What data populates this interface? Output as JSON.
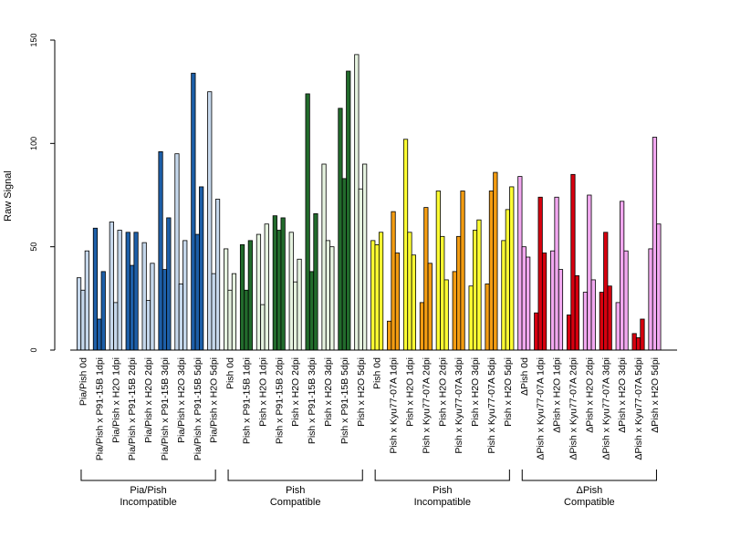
{
  "chart_data": {
    "type": "bar",
    "ylabel": "Raw Signal",
    "xlabel": "",
    "title": "",
    "ylim": [
      0,
      150
    ],
    "yticks": [
      0,
      50,
      100,
      150
    ],
    "grid": false,
    "legend": "none",
    "colors": {
      "pale_blue": "#c6d8ec",
      "dark_blue": "#1d5fa8",
      "pale_green": "#e6f3e0",
      "dark_green": "#226b2c",
      "yellow": "#ffff33",
      "orange": "#f39c12",
      "pink": "#f2a8f0",
      "red": "#d7000f"
    },
    "categories": [
      {
        "label": "Pia/Pish 0d",
        "color": "pale_blue",
        "values": [
          35,
          29,
          48
        ]
      },
      {
        "label": "Pia/Pish x P91-15B 1dpi",
        "color": "dark_blue",
        "values": [
          59,
          15,
          38
        ]
      },
      {
        "label": "Pia/Pish x H2O 1dpi",
        "color": "pale_blue",
        "values": [
          62,
          23,
          58
        ]
      },
      {
        "label": "Pia/Pish x P91-15B 2dpi",
        "color": "dark_blue",
        "values": [
          57,
          41,
          57
        ]
      },
      {
        "label": "Pia/Pish x H2O 2dpi",
        "color": "pale_blue",
        "values": [
          52,
          24,
          42
        ]
      },
      {
        "label": "Pia/Pish x P91-15B 3dpi",
        "color": "dark_blue",
        "values": [
          96,
          39,
          64
        ]
      },
      {
        "label": "Pia/Pish x H2O 3dpi",
        "color": "pale_blue",
        "values": [
          95,
          32,
          53
        ]
      },
      {
        "label": "Pia/Pish x P91-15B 5dpi",
        "color": "dark_blue",
        "values": [
          134,
          56,
          79
        ]
      },
      {
        "label": "Pia/Pish x H2O 5dpi",
        "color": "pale_blue",
        "values": [
          125,
          37,
          73
        ]
      },
      {
        "label": "Pish 0d",
        "color": "pale_green",
        "values": [
          49,
          29,
          37
        ]
      },
      {
        "label": "Pish x P91-15B 1dpi",
        "color": "dark_green",
        "values": [
          51,
          29,
          53
        ]
      },
      {
        "label": "Pish x H2O 1dpi",
        "color": "pale_green",
        "values": [
          56,
          22,
          61
        ]
      },
      {
        "label": "Pish x P91-15B 2dpi",
        "color": "dark_green",
        "values": [
          65,
          58,
          64
        ]
      },
      {
        "label": "Pish x H2O 2dpi",
        "color": "pale_green",
        "values": [
          57,
          33,
          44
        ]
      },
      {
        "label": "Pish x P91-15B 3dpi",
        "color": "dark_green",
        "values": [
          124,
          38,
          66
        ]
      },
      {
        "label": "Pish x H2O 3dpi",
        "color": "pale_green",
        "values": [
          90,
          53,
          50
        ]
      },
      {
        "label": "Pish x P91-15B 5dpi",
        "color": "dark_green",
        "values": [
          117,
          83,
          135
        ]
      },
      {
        "label": "Pish x H2O 5dpi",
        "color": "pale_green",
        "values": [
          143,
          78,
          90
        ]
      },
      {
        "label": "Pish 0d",
        "color": "yellow",
        "values": [
          53,
          51,
          57
        ]
      },
      {
        "label": "Pish x Kyu77-07A 1dpi",
        "color": "orange",
        "values": [
          14,
          67,
          47
        ]
      },
      {
        "label": "Pish x H2O 1dpi",
        "color": "yellow",
        "values": [
          102,
          57,
          46
        ]
      },
      {
        "label": "Pish x Kyu77-07A 2dpi",
        "color": "orange",
        "values": [
          23,
          69,
          42
        ]
      },
      {
        "label": "Pish x H2O 2dpi",
        "color": "yellow",
        "values": [
          77,
          55,
          34
        ]
      },
      {
        "label": "Pish x Kyu77-07A 3dpi",
        "color": "orange",
        "values": [
          38,
          55,
          77
        ]
      },
      {
        "label": "Pish x H2O 3dpi",
        "color": "yellow",
        "values": [
          31,
          58,
          63
        ]
      },
      {
        "label": "Pish x Kyu77-07A 5dpi",
        "color": "orange",
        "values": [
          32,
          77,
          86
        ]
      },
      {
        "label": "Pish x H2O 5dpi",
        "color": "yellow",
        "values": [
          53,
          68,
          79
        ]
      },
      {
        "label": "ΔPish 0d",
        "color": "pink",
        "values": [
          84,
          50,
          45
        ]
      },
      {
        "label": "ΔPish x Kyu77-07A 1dpi",
        "color": "red",
        "values": [
          18,
          74,
          47
        ]
      },
      {
        "label": "ΔPish x H2O 1dpi",
        "color": "pink",
        "values": [
          48,
          74,
          39
        ]
      },
      {
        "label": "ΔPish x Kyu77-07A 2dpi",
        "color": "red",
        "values": [
          17,
          85,
          36
        ]
      },
      {
        "label": "ΔPish x H2O 2dpi",
        "color": "pink",
        "values": [
          28,
          75,
          34
        ]
      },
      {
        "label": "ΔPish x Kyu77-07A 3dpi",
        "color": "red",
        "values": [
          28,
          57,
          31
        ]
      },
      {
        "label": "ΔPish x H2O 3dpi",
        "color": "pink",
        "values": [
          23,
          72,
          48
        ]
      },
      {
        "label": "ΔPish x Kyu77-07A 5dpi",
        "color": "red",
        "values": [
          8,
          6,
          15
        ]
      },
      {
        "label": "ΔPish x H2O 5dpi",
        "color": "pink",
        "values": [
          49,
          103,
          61
        ]
      }
    ],
    "groups": [
      {
        "line1": "Pia/Pish",
        "line2": "Incompatible",
        "first": 0,
        "last": 8
      },
      {
        "line1": "Pish",
        "line2": "Compatible",
        "first": 9,
        "last": 17
      },
      {
        "line1": "Pish",
        "line2": "Incompatible",
        "first": 18,
        "last": 26
      },
      {
        "line1": "ΔPish",
        "line2": "Compatible",
        "first": 27,
        "last": 35
      }
    ]
  }
}
